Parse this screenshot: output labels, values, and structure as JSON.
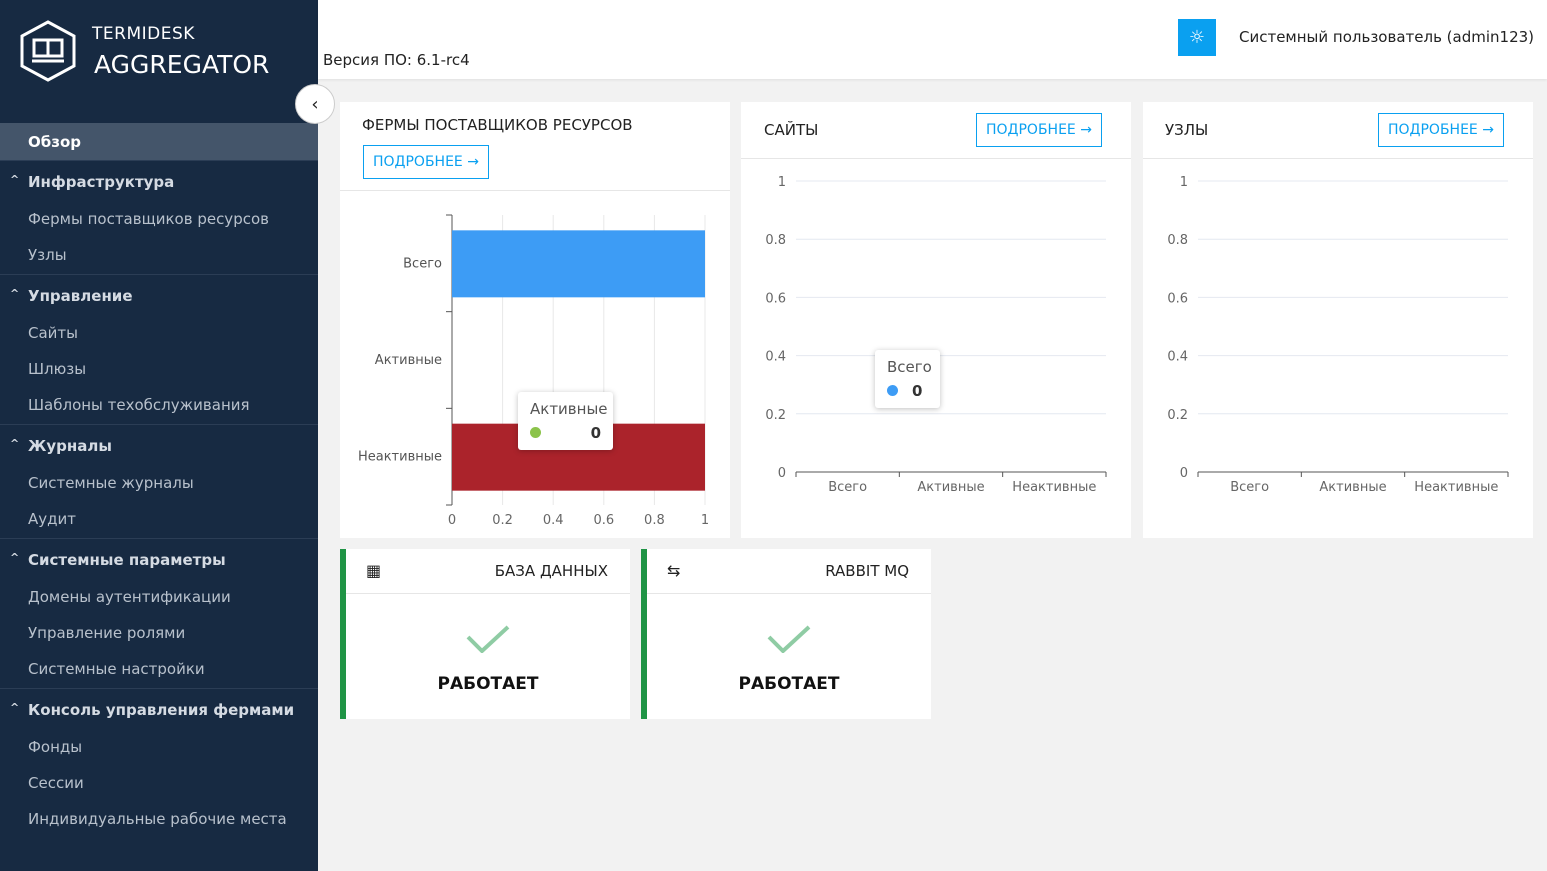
{
  "app": {
    "brand_top": "TERMIDESK",
    "brand_bottom": "AGGREGATOR",
    "version": "Версия ПО: 6.1-rc4",
    "user": "Системный пользователь (admin123)"
  },
  "sidebar": {
    "active": "Обзор",
    "groups": [
      {
        "label": "Инфраструктура",
        "items": [
          "Фермы поставщиков ресурсов",
          "Узлы"
        ]
      },
      {
        "label": "Управление",
        "items": [
          "Сайты",
          "Шлюзы",
          "Шаблоны техобслуживания"
        ]
      },
      {
        "label": "Журналы",
        "items": [
          "Системные журналы",
          "Аудит"
        ]
      },
      {
        "label": "Системные параметры",
        "items": [
          "Домены аутентификации",
          "Управление ролями",
          "Системные настройки"
        ]
      },
      {
        "label": "Консоль управления фермами",
        "items": [
          "Фонды",
          "Сессии",
          "Индивидуальные рабочие места"
        ]
      }
    ]
  },
  "cards": [
    {
      "title": "ФЕРМЫ ПОСТАВЩИКОВ РЕСУРСОВ",
      "button": "ПОДРОБНЕЕ",
      "tooltip": {
        "label": "Активные",
        "value": "0",
        "color": "#8bc34a"
      }
    },
    {
      "title": "САЙТЫ",
      "button": "ПОДРОБНЕЕ",
      "tooltip": {
        "label": "Всего",
        "value": "0",
        "color": "#3d9cf5"
      }
    },
    {
      "title": "УЗЛЫ",
      "button": "ПОДРОБНЕЕ"
    }
  ],
  "services": [
    {
      "name": "БАЗА ДАННЫХ",
      "icon": "database-icon",
      "status": "РАБОТАЕТ"
    },
    {
      "name": "RABBIT MQ",
      "icon": "swap-arrows-icon",
      "status": "РАБОТАЕТ"
    }
  ],
  "colors": {
    "accent": "#0aa0f0",
    "total": "#3d9cf5",
    "inactive": "#ab232b",
    "active": "#8bc34a",
    "ok": "#1f9445"
  },
  "chart_data": [
    {
      "type": "bar",
      "orientation": "horizontal",
      "categories": [
        "Всего",
        "Активные",
        "Неактивные"
      ],
      "values": [
        1,
        0,
        1
      ],
      "colors": [
        "#3d9cf5",
        "#8bc34a",
        "#ab232b"
      ],
      "xlim": [
        0,
        1
      ],
      "xticks": [
        "0",
        "0.2",
        "0.4",
        "0.6",
        "0.8",
        "1"
      ],
      "grid": true
    },
    {
      "type": "bar",
      "categories": [
        "Всего",
        "Активные",
        "Неактивные"
      ],
      "values": [
        0,
        0,
        0
      ],
      "ylim": [
        0,
        1
      ],
      "yticks": [
        "0",
        "0.2",
        "0.4",
        "0.6",
        "0.8",
        "1"
      ],
      "grid": true
    },
    {
      "type": "bar",
      "categories": [
        "Всего",
        "Активные",
        "Неактивные"
      ],
      "values": [
        0,
        0,
        0
      ],
      "ylim": [
        0,
        1
      ],
      "yticks": [
        "0",
        "0.2",
        "0.4",
        "0.6",
        "0.8",
        "1"
      ],
      "grid": true
    }
  ]
}
